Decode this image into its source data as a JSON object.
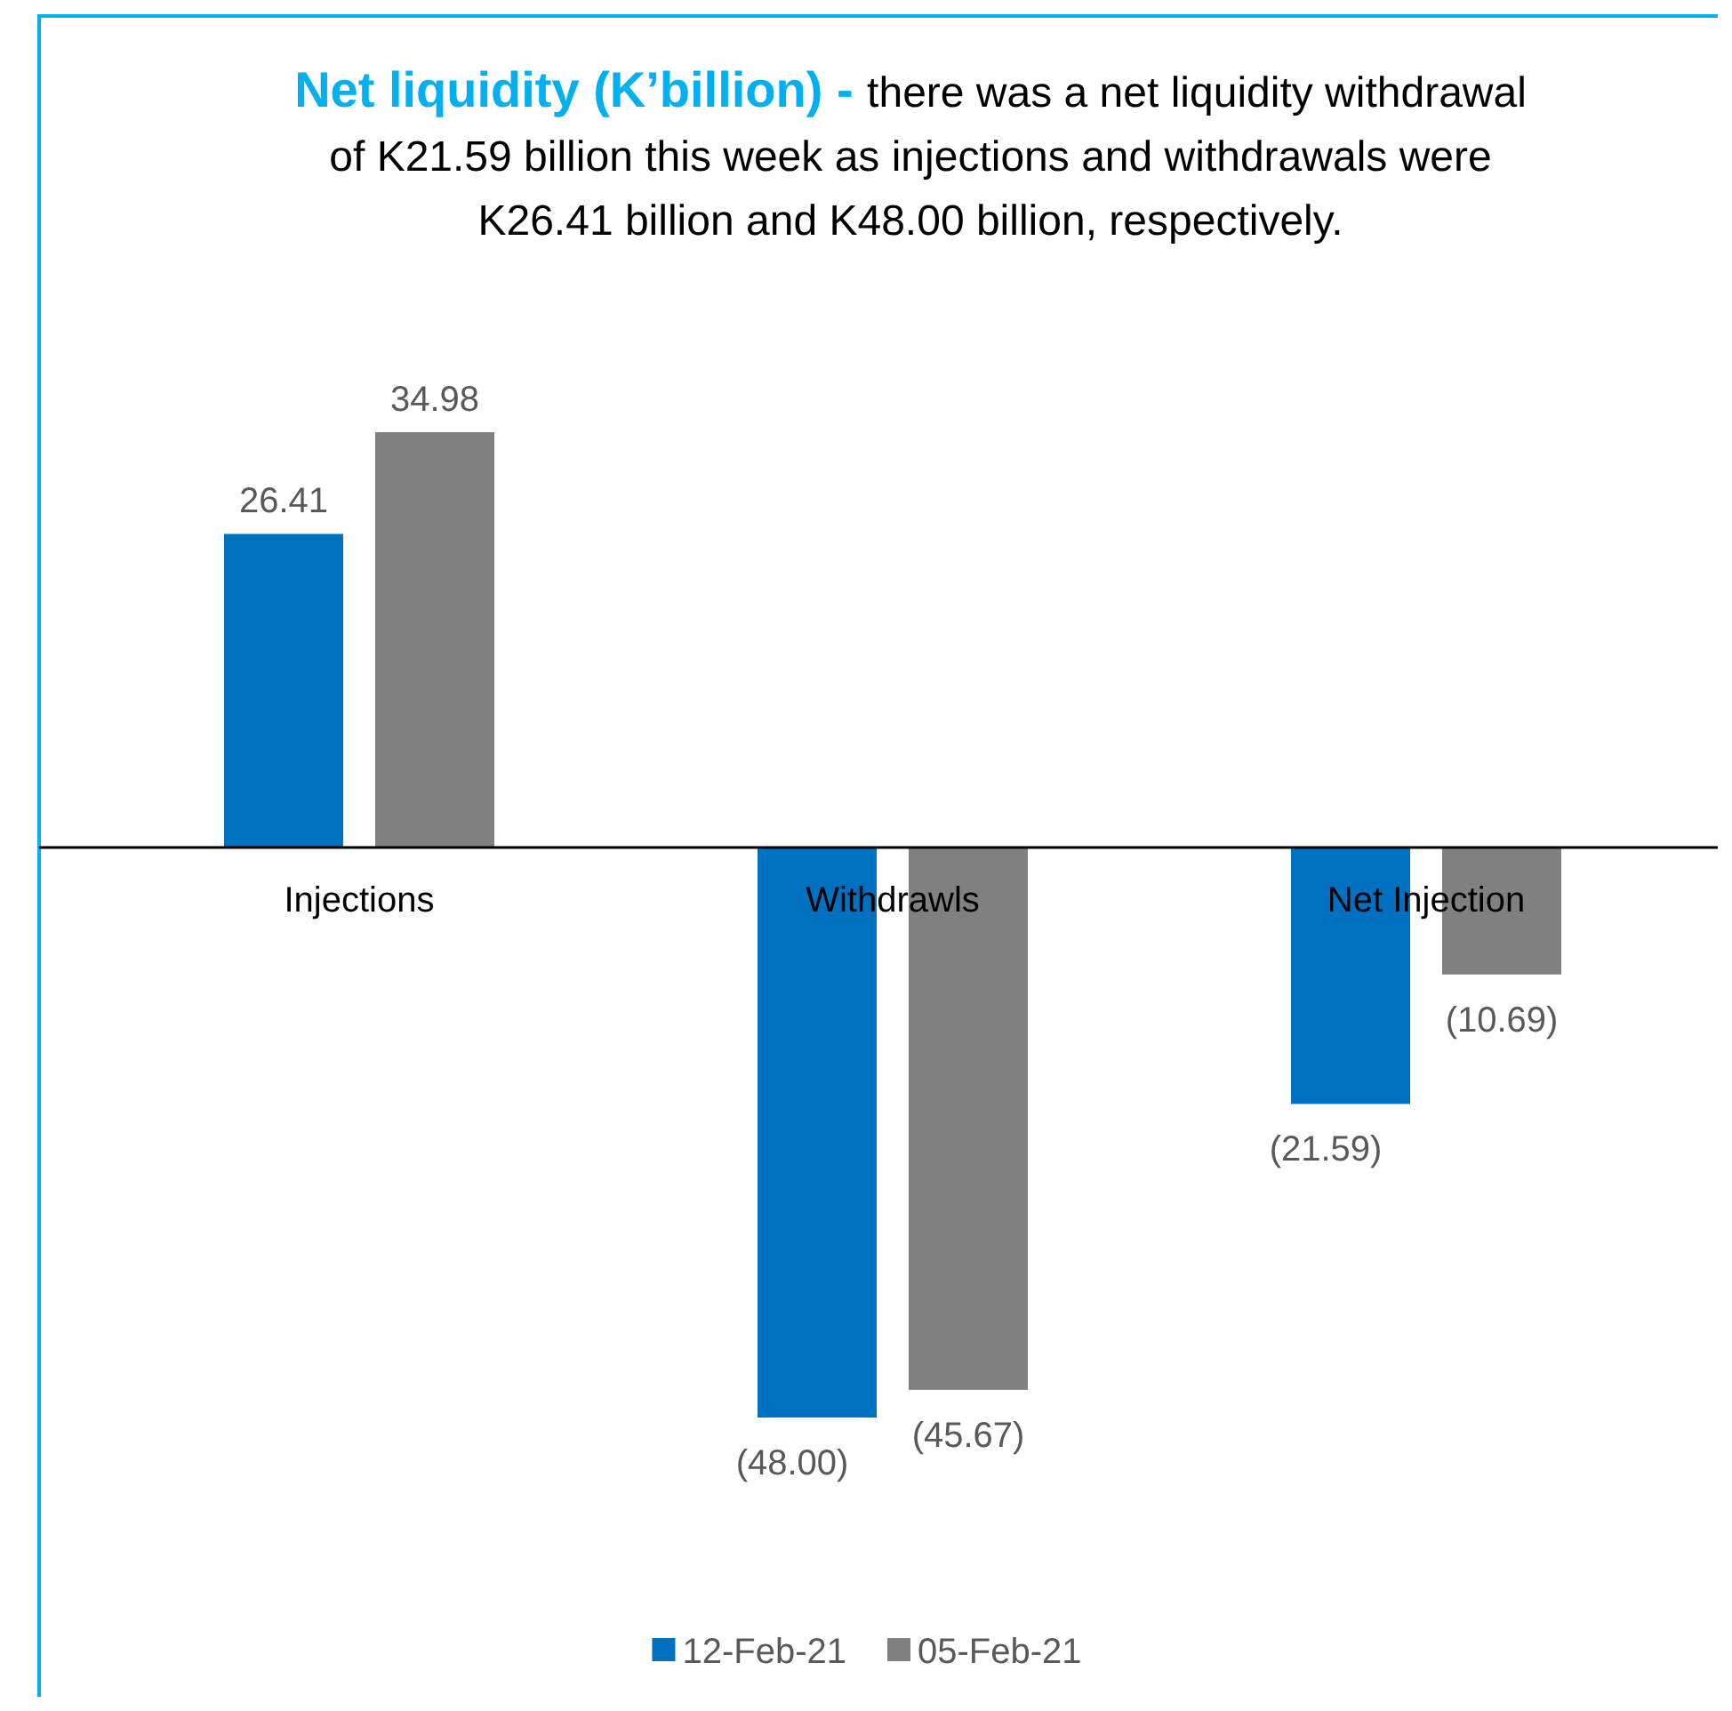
{
  "chart_data": {
    "type": "bar",
    "title": "Net liquidity (K’billion) -",
    "subtitle": "there was a net liquidity withdrawal of K21.59 billion this week as injections and withdrawals were K26.41 billion and K48.00 billion, respectively.",
    "categories": [
      "Injections",
      "Withdrawls",
      "Net Injection"
    ],
    "series": [
      {
        "name": "12-Feb-21",
        "color": "#0070c0",
        "values": [
          26.41,
          -48.0,
          -21.59
        ],
        "value_labels": [
          "26.41",
          "(48.00)",
          "(21.59)"
        ]
      },
      {
        "name": "05-Feb-21",
        "color": "#808080",
        "values": [
          34.98,
          -45.67,
          -10.69
        ],
        "value_labels": [
          "34.98",
          "(45.67)",
          "(10.69)"
        ]
      }
    ],
    "legend": "bottom"
  }
}
